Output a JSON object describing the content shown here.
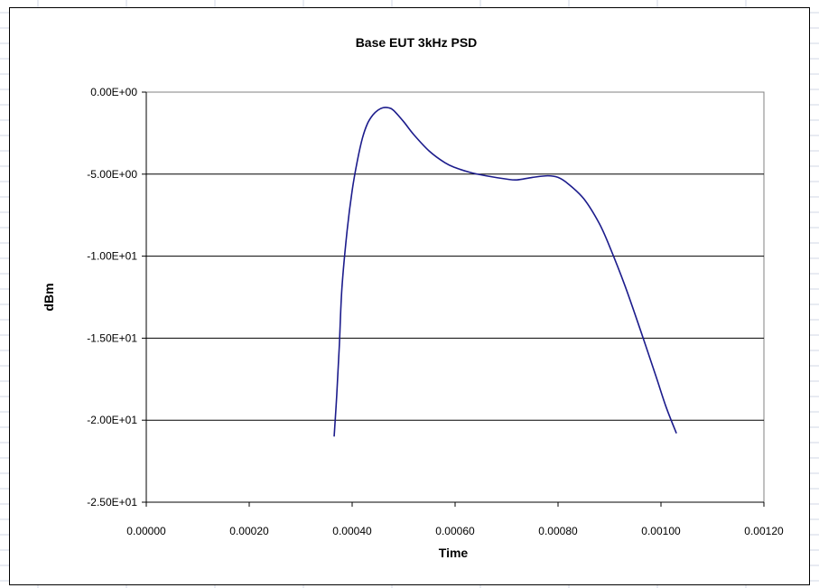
{
  "chart_data": {
    "type": "line",
    "title": "Base EUT 3kHz PSD",
    "xlabel": "Time",
    "ylabel": "dBm",
    "xlim": [
      0,
      0.0012
    ],
    "ylim": [
      -25,
      0
    ],
    "x_ticks": [
      "0.00000",
      "0.00020",
      "0.00040",
      "0.00060",
      "0.00080",
      "0.00100",
      "0.00120"
    ],
    "y_ticks": [
      "0.00E+00",
      "-5.00E+00",
      "-1.00E+01",
      "-1.50E+01",
      "-2.00E+01",
      "-2.50E+01"
    ],
    "y_tick_values": [
      0,
      -5,
      -10,
      -15,
      -20,
      -25
    ],
    "x_tick_values": [
      0,
      0.0002,
      0.0004,
      0.0006,
      0.0008,
      0.001,
      0.0012
    ],
    "grid": "horizontal major gridlines",
    "legend": "none",
    "series_color": "#1c1c8c",
    "series": [
      {
        "x": [
          0.000365,
          0.00037,
          0.000375,
          0.00038,
          0.00039,
          0.0004,
          0.00041,
          0.00042,
          0.00043,
          0.00044,
          0.00045,
          0.00046,
          0.00047,
          0.00048,
          0.0005,
          0.00052,
          0.00055,
          0.00058,
          0.0006,
          0.00063,
          0.00066,
          0.0007,
          0.00072,
          0.00075,
          0.00078,
          0.0008,
          0.00082,
          0.00085,
          0.00088,
          0.0009,
          0.00093,
          0.00096,
          0.00099,
          0.00101,
          0.00103
        ],
        "values": [
          -21.0,
          -18.5,
          -15.5,
          -12.0,
          -8.5,
          -6.0,
          -4.2,
          -2.8,
          -1.9,
          -1.4,
          -1.1,
          -0.95,
          -0.95,
          -1.1,
          -1.8,
          -2.6,
          -3.6,
          -4.3,
          -4.6,
          -4.9,
          -5.1,
          -5.3,
          -5.35,
          -5.2,
          -5.1,
          -5.2,
          -5.6,
          -6.5,
          -8.0,
          -9.4,
          -11.8,
          -14.5,
          -17.3,
          -19.2,
          -20.8
        ]
      }
    ]
  }
}
